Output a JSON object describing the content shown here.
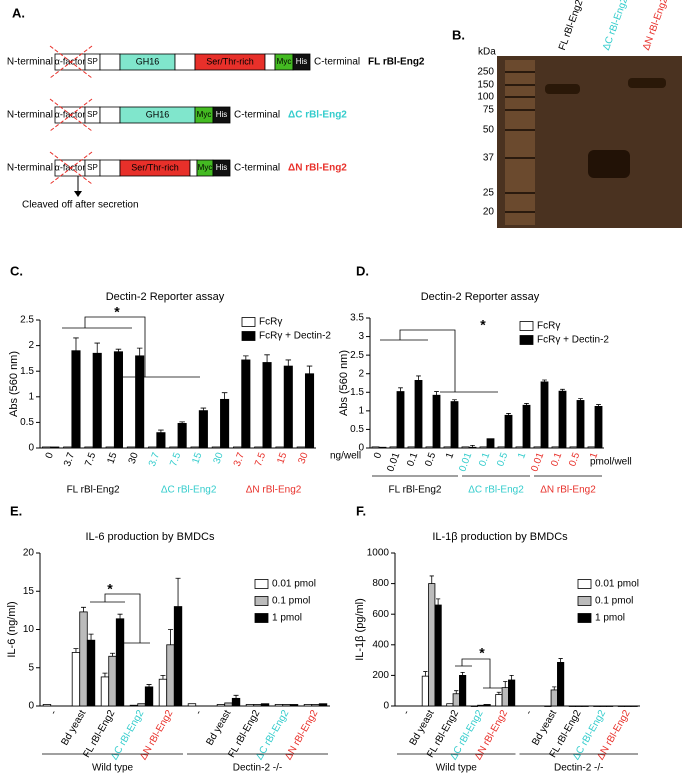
{
  "panel_labels": [
    "A.",
    "B.",
    "C.",
    "D.",
    "E.",
    "F."
  ],
  "diagram": {
    "n_terminal": "N-terminal",
    "c_terminal": "C-terminal",
    "domains": {
      "alpha_factor": "α-factor",
      "sp": "SP",
      "gh16": "GH16",
      "ser_thr": "Ser/Thr-rich",
      "myc": "Myc",
      "his": "His"
    },
    "constructs": [
      "FL rBl-Eng2",
      "ΔC rBl-Eng2",
      "ΔN rBl-Eng2"
    ],
    "note": "Cleaved off after secretion"
  },
  "gel": {
    "unit": "kDa",
    "markers": [
      250,
      150,
      100,
      75,
      50,
      37,
      25,
      20
    ],
    "lanes": [
      "FL rBl-Eng2",
      "ΔC rBl-Eng2",
      "ΔN rBl-Eng2"
    ]
  },
  "chart_data": [
    {
      "type": "bar",
      "title": "Dectin-2 Reporter assay",
      "y_label": "Abs (560 nm)",
      "unit_label": "ng/well",
      "annotation": "*",
      "categories": [
        "0",
        "3.7",
        "7.5",
        "15",
        "30",
        "3.7",
        "7.5",
        "15",
        "30",
        "3.7",
        "7.5",
        "15",
        "30"
      ],
      "category_colors": [
        "#000",
        "#000",
        "#000",
        "#000",
        "#000",
        "#33cccc",
        "#33cccc",
        "#33cccc",
        "#33cccc",
        "#e8302a",
        "#e8302a",
        "#e8302a",
        "#e8302a"
      ],
      "groups": [
        "FL rBl-Eng2",
        "ΔC rBl-Eng2",
        "ΔN rBl-Eng2"
      ],
      "group_colors": [
        "#000",
        "#33cccc",
        "#e8302a"
      ],
      "ylim": [
        0,
        2.5
      ],
      "yticks": [
        0,
        0.5,
        1,
        1.5,
        2,
        2.5
      ],
      "series": [
        {
          "name": "FcRγ",
          "color": "#ffffff",
          "values": [
            0.02,
            0.02,
            0.02,
            0.02,
            0.02,
            0.02,
            0.02,
            0.02,
            0.02,
            0.02,
            0.02,
            0.02,
            0.02
          ],
          "errors": [
            null,
            null,
            null,
            null,
            null,
            null,
            null,
            null,
            null,
            null,
            null,
            null,
            null
          ]
        },
        {
          "name": "FcRγ + Dectin-2",
          "color": "#000000",
          "values": [
            0.02,
            1.9,
            1.85,
            1.88,
            1.8,
            0.3,
            0.48,
            0.73,
            0.95,
            1.72,
            1.67,
            1.6,
            1.45
          ],
          "errors": [
            null,
            0.25,
            0.2,
            0.05,
            0.15,
            0.05,
            0.03,
            0.05,
            0.13,
            0.08,
            0.15,
            0.12,
            0.15
          ]
        }
      ]
    },
    {
      "type": "bar",
      "title": "Dectin-2 Reporter assay",
      "y_label": "Abs (560 nm)",
      "unit_label": "pmol/well",
      "annotation": "*",
      "categories": [
        "0",
        "0.01",
        "0.1",
        "0.5",
        "1",
        "0.01",
        "0.1",
        "0.5",
        "1",
        "0.01",
        "0.1",
        "0.5",
        "1"
      ],
      "category_colors": [
        "#000",
        "#000",
        "#000",
        "#000",
        "#000",
        "#33cccc",
        "#33cccc",
        "#33cccc",
        "#33cccc",
        "#e8302a",
        "#e8302a",
        "#e8302a",
        "#e8302a"
      ],
      "groups": [
        "FL rBl-Eng2",
        "ΔC rBl-Eng2",
        "ΔN rBl-Eng2"
      ],
      "group_colors": [
        "#000",
        "#33cccc",
        "#e8302a"
      ],
      "ylim": [
        0,
        3.5
      ],
      "yticks": [
        0,
        0.5,
        1,
        1.5,
        2,
        2.5,
        3,
        3.5
      ],
      "series": [
        {
          "name": "FcRγ",
          "color": "#ffffff",
          "values": [
            0.03,
            0.03,
            0.03,
            0.03,
            0.03,
            0.03,
            0.03,
            0.03,
            0.03,
            0.03,
            0.03,
            0.03,
            0.03
          ],
          "errors": [
            null,
            null,
            null,
            null,
            null,
            null,
            null,
            null,
            null,
            null,
            null,
            null,
            null
          ]
        },
        {
          "name": "FcRγ + Dectin-2",
          "color": "#000000",
          "values": [
            0.02,
            1.52,
            1.82,
            1.42,
            1.25,
            0.02,
            0.25,
            0.88,
            1.15,
            1.78,
            1.53,
            1.28,
            1.12
          ],
          "errors": [
            null,
            0.1,
            0.12,
            0.1,
            0.05,
            0.05,
            null,
            0.05,
            0.05,
            0.05,
            0.05,
            0.05,
            0.05
          ]
        }
      ]
    },
    {
      "type": "bar",
      "title": "IL-6 production by BMDCs",
      "y_label": "IL-6 (ng/ml)",
      "annotation": "*",
      "categories": [
        "-",
        "Bd yeast",
        "FL rBl-Eng2",
        "ΔC rBl-Eng2",
        "ΔN rBl-Eng2",
        "-",
        "Bd yeast",
        "FL rBl-Eng2",
        "ΔC rBl-Eng2",
        "ΔN rBl-Eng2"
      ],
      "category_colors": [
        "#000",
        "#000",
        "#000",
        "#33cccc",
        "#e8302a",
        "#000",
        "#000",
        "#000",
        "#33cccc",
        "#e8302a"
      ],
      "groups": [
        "Wild type",
        "Dectin-2 -/-"
      ],
      "group_colors": [
        "#000",
        "#000"
      ],
      "ylim": [
        0,
        20
      ],
      "yticks": [
        0,
        5,
        10,
        15,
        20
      ],
      "series": [
        {
          "name": "0.01 pmol",
          "color": "#ffffff",
          "values": [
            0.2,
            7,
            3.8,
            0.1,
            3.5,
            0.3,
            0.2,
            0.2,
            0.2,
            0.2
          ],
          "errors": [
            null,
            0.5,
            0.5,
            null,
            0.5,
            null,
            null,
            null,
            null,
            null
          ]
        },
        {
          "name": "0.1 pmol",
          "color": "#bbbbbb",
          "values": [
            null,
            12.3,
            6.5,
            0.3,
            8,
            null,
            0.4,
            0.2,
            0.2,
            0.2
          ],
          "errors": [
            null,
            0.6,
            0.4,
            null,
            2,
            null,
            null,
            null,
            null,
            null
          ]
        },
        {
          "name": "1 pmol",
          "color": "#000000",
          "values": [
            null,
            8.6,
            11.4,
            2.5,
            13,
            null,
            1,
            0.3,
            0.2,
            0.3
          ],
          "errors": [
            null,
            0.8,
            0.6,
            0.3,
            3.7,
            null,
            0.4,
            null,
            null,
            null
          ]
        }
      ]
    },
    {
      "type": "bar",
      "title": "IL-1β production by BMDCs",
      "y_label": "IL-1β (pg/ml)",
      "annotation": "*",
      "categories": [
        "-",
        "Bd yeast",
        "FL rBl-Eng2",
        "ΔC rBl-Eng2",
        "ΔN rBl-Eng2",
        "-",
        "Bd yeast",
        "FL rBl-Eng2",
        "ΔC rBl-Eng2",
        "ΔN rBl-Eng2"
      ],
      "category_colors": [
        "#000",
        "#000",
        "#000",
        "#33cccc",
        "#e8302a",
        "#000",
        "#000",
        "#000",
        "#33cccc",
        "#e8302a"
      ],
      "groups": [
        "Wild type",
        "Dectin-2 -/-"
      ],
      "group_colors": [
        "#000",
        "#000"
      ],
      "ylim": [
        0,
        1000
      ],
      "yticks": [
        0,
        200,
        400,
        600,
        800,
        1000
      ],
      "series": [
        {
          "name": "0.01 pmol",
          "color": "#ffffff",
          "values": [
            null,
            195,
            15,
            0,
            75,
            null,
            0,
            0,
            0,
            0
          ],
          "errors": [
            null,
            30,
            null,
            null,
            15,
            null,
            null,
            null,
            null,
            null
          ]
        },
        {
          "name": "0.1 pmol",
          "color": "#bbbbbb",
          "values": [
            null,
            800,
            80,
            5,
            120,
            null,
            105,
            0,
            0,
            0
          ],
          "errors": [
            null,
            50,
            20,
            null,
            40,
            null,
            20,
            null,
            null,
            null
          ]
        },
        {
          "name": "1 pmol",
          "color": "#000000",
          "values": [
            null,
            660,
            200,
            10,
            170,
            null,
            285,
            0,
            0,
            0
          ],
          "errors": [
            null,
            40,
            20,
            null,
            30,
            null,
            25,
            null,
            null,
            null
          ]
        }
      ]
    }
  ]
}
